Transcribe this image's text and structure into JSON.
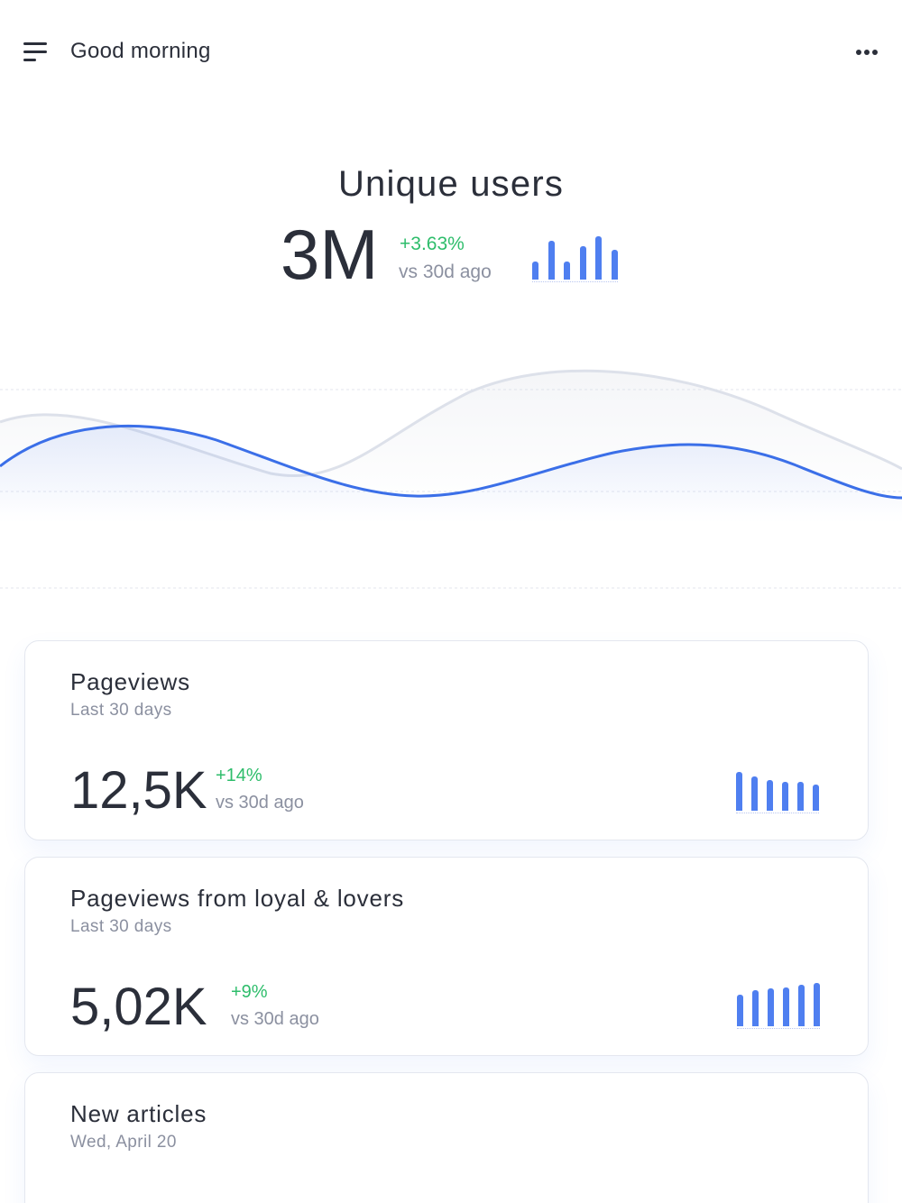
{
  "header": {
    "greeting": "Good morning",
    "menu_icon": "menu-icon",
    "more_icon": "more-horizontal-icon"
  },
  "hero": {
    "title": "Unique users",
    "value": "3M",
    "change": "+3.63%",
    "comparison": "vs 30d ago"
  },
  "cards": [
    {
      "title": "Pageviews",
      "subtitle": "Last 30 days",
      "value": "12,5K",
      "change": "+14%",
      "comparison": "vs 30d ago"
    },
    {
      "title": "Pageviews from loyal & lovers",
      "subtitle": "Last 30 days",
      "value": "5,02K",
      "change": "+9%",
      "comparison": "vs 30d ago"
    },
    {
      "title": "New articles",
      "subtitle": "Wed, April 20"
    }
  ],
  "colors": {
    "accent": "#4f7ff0",
    "positive": "#2ebd6b",
    "text": "#2b2f3a",
    "muted": "#8b90a0"
  }
}
